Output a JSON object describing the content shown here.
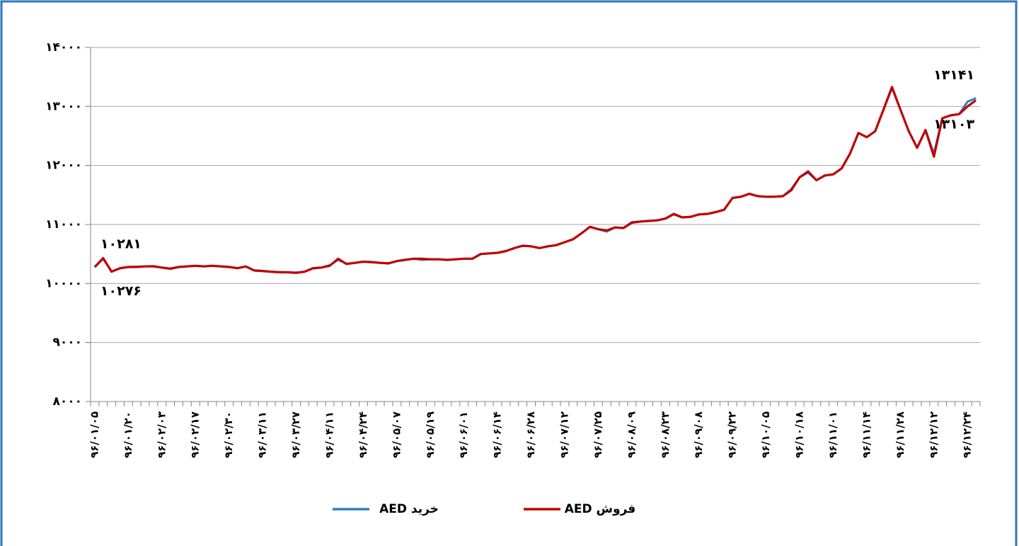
{
  "chart_data": {
    "type": "line",
    "categories": [
      "۹۶/۰۱/۰۵",
      null,
      null,
      null,
      "۹۶/۰۱/۲۰",
      null,
      null,
      null,
      "۹۶/۰۲/۰۳",
      null,
      null,
      null,
      "۹۶/۰۲/۱۷",
      null,
      null,
      null,
      "۹۶/۰۲/۳۰",
      null,
      null,
      null,
      "۹۶/۰۳/۱۱",
      null,
      null,
      null,
      "۹۶/۰۳/۲۷",
      null,
      null,
      null,
      "۹۶/۰۴/۱۱",
      null,
      null,
      null,
      "۹۶/۰۴/۲۴",
      null,
      null,
      null,
      "۹۶/۰۵/۰۷",
      null,
      null,
      null,
      "۹۶/۰۵/۱۹",
      null,
      null,
      null,
      "۹۶/۰۶/۰۱",
      null,
      null,
      null,
      "۹۶/۰۶/۱۴",
      null,
      null,
      null,
      "۹۶/۰۶/۲۸",
      null,
      null,
      null,
      "۹۶/۰۷/۱۲",
      null,
      null,
      null,
      "۹۶/۰۷/۲۵",
      null,
      null,
      null,
      "۹۶/۰۸/۰۹",
      null,
      null,
      null,
      "۹۶/۰۸/۲۳",
      null,
      null,
      null,
      "۹۶/۰۹/۰۸",
      null,
      null,
      null,
      "۹۶/۰۹/۲۲",
      null,
      null,
      null,
      "۹۶/۱۰/۰۵",
      null,
      null,
      null,
      "۹۶/۱۰/۱۸",
      null,
      null,
      null,
      "۹۶/۱۱/۰۱",
      null,
      null,
      null,
      "۹۶/۱۱/۱۴",
      null,
      null,
      null,
      "۹۶/۱۱/۲۸",
      null,
      null,
      null,
      "۹۶/۱۲/۱۲",
      null,
      null,
      null,
      "۹۶/۱۲/۲۴",
      null
    ],
    "series": [
      {
        "name": "خرید AED",
        "color": "#2e7ec8",
        "values": [
          10276,
          10420,
          10205,
          10255,
          10280,
          10285,
          10290,
          10295,
          10270,
          10255,
          10280,
          10290,
          10300,
          10290,
          10300,
          10290,
          10280,
          10260,
          10285,
          10225,
          10215,
          10200,
          10195,
          10190,
          10185,
          10200,
          10255,
          10270,
          10310,
          10400,
          10335,
          10350,
          10370,
          10365,
          10350,
          10345,
          10380,
          10405,
          10420,
          10400,
          10410,
          10410,
          10400,
          10410,
          10420,
          10420,
          10500,
          10510,
          10520,
          10550,
          10600,
          10640,
          10630,
          10600,
          10630,
          10650,
          10700,
          10750,
          10850,
          10960,
          10920,
          10880,
          10950,
          10940,
          11040,
          11050,
          11060,
          11070,
          11100,
          11170,
          11120,
          11130,
          11170,
          11180,
          11210,
          11250,
          11450,
          11470,
          11520,
          11480,
          11470,
          11470,
          11480,
          11600,
          11800,
          11880,
          11750,
          11830,
          11850,
          11950,
          12200,
          12550,
          12480,
          12580,
          12950,
          13310,
          12950,
          12580,
          12300,
          12600,
          12200,
          12800,
          12850,
          12870,
          13080,
          13141
        ],
        "value_labels": [
          "۱۰۲۷۶",
          null,
          null,
          null,
          null,
          null,
          null,
          null,
          null,
          null,
          null,
          null,
          null,
          null,
          null,
          null,
          null,
          null,
          null,
          null,
          null,
          null,
          null,
          null,
          null,
          null,
          null,
          null,
          null,
          null,
          null,
          null,
          null,
          null,
          null,
          null,
          null,
          null,
          null,
          null,
          null,
          null,
          null,
          null,
          null,
          null,
          null,
          null,
          null,
          null,
          null,
          null,
          null,
          null,
          null,
          null,
          null,
          null,
          null,
          null,
          null,
          null,
          null,
          null,
          null,
          null,
          null,
          null,
          null,
          null,
          null,
          null,
          null,
          null,
          null,
          null,
          null,
          null,
          null,
          null,
          null,
          null,
          null,
          null,
          null,
          null,
          null,
          null,
          null,
          null,
          null,
          null,
          null,
          null,
          null,
          null,
          null,
          null,
          null,
          null,
          null,
          null,
          null,
          null,
          null,
          "۱۳۱۴۱"
        ]
      },
      {
        "name": "فروش AED",
        "color": "#c00000",
        "values": [
          10281,
          10430,
          10200,
          10260,
          10280,
          10280,
          10290,
          10290,
          10270,
          10250,
          10280,
          10290,
          10300,
          10290,
          10300,
          10290,
          10280,
          10260,
          10290,
          10220,
          10210,
          10200,
          10190,
          10190,
          10180,
          10200,
          10260,
          10270,
          10300,
          10420,
          10330,
          10350,
          10370,
          10360,
          10350,
          10340,
          10380,
          10400,
          10420,
          10420,
          10410,
          10410,
          10400,
          10410,
          10420,
          10420,
          10500,
          10510,
          10520,
          10550,
          10600,
          10640,
          10630,
          10600,
          10630,
          10650,
          10700,
          10750,
          10850,
          10960,
          10920,
          10900,
          10950,
          10940,
          11030,
          11050,
          11060,
          11070,
          11100,
          11180,
          11120,
          11130,
          11170,
          11180,
          11210,
          11250,
          11450,
          11470,
          11520,
          11480,
          11470,
          11470,
          11480,
          11580,
          11800,
          11900,
          11750,
          11830,
          11850,
          11950,
          12200,
          12550,
          12480,
          12580,
          12950,
          13330,
          12950,
          12580,
          12300,
          12600,
          12150,
          12800,
          12850,
          12870,
          13000,
          13103
        ],
        "value_labels": [
          "۱۰۲۸۱",
          null,
          null,
          null,
          null,
          null,
          null,
          null,
          null,
          null,
          null,
          null,
          null,
          null,
          null,
          null,
          null,
          null,
          null,
          null,
          null,
          null,
          null,
          null,
          null,
          null,
          null,
          null,
          null,
          null,
          null,
          null,
          null,
          null,
          null,
          null,
          null,
          null,
          null,
          null,
          null,
          null,
          null,
          null,
          null,
          null,
          null,
          null,
          null,
          null,
          null,
          null,
          null,
          null,
          null,
          null,
          null,
          null,
          null,
          null,
          null,
          null,
          null,
          null,
          null,
          null,
          null,
          null,
          null,
          null,
          null,
          null,
          null,
          null,
          null,
          null,
          null,
          null,
          null,
          null,
          null,
          null,
          null,
          null,
          null,
          null,
          null,
          null,
          null,
          null,
          null,
          null,
          null,
          null,
          null,
          null,
          null,
          null,
          null,
          null,
          null,
          null,
          null,
          null,
          null,
          "۱۳۱۰۳"
        ]
      }
    ],
    "ylim": [
      8000,
      14000
    ],
    "yticks": [
      {
        "value": 8000,
        "label": "۸۰۰۰"
      },
      {
        "value": 9000,
        "label": "۹۰۰۰"
      },
      {
        "value": 10000,
        "label": "۱۰۰۰۰"
      },
      {
        "value": 11000,
        "label": "۱۱۰۰۰"
      },
      {
        "value": 12000,
        "label": "۱۲۰۰۰"
      },
      {
        "value": 13000,
        "label": "۱۳۰۰۰"
      },
      {
        "value": 14000,
        "label": "۱۴۰۰۰"
      }
    ],
    "grid": true,
    "legend": "bottom"
  }
}
